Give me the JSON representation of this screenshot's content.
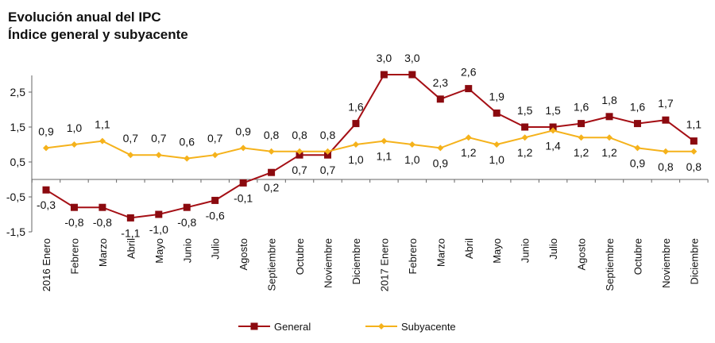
{
  "chart_data": {
    "type": "line",
    "title": "Evolución anual del IPC",
    "subtitle": "Índice general y subyacente",
    "categories": [
      "2016 Enero",
      "Febrero",
      "Marzo",
      "Abril",
      "Mayo",
      "Junio",
      "Julio",
      "Agosto",
      "Septiembre",
      "Octubre",
      "Noviembre",
      "Diciembre",
      "2017 Enero",
      "Febrero",
      "Marzo",
      "Abril",
      "Mayo",
      "Junio",
      "Julio",
      "Agosto",
      "Septiembre",
      "Octubre",
      "Noviembre",
      "Diciembre"
    ],
    "y_ticks": [
      "2,5",
      "1,5",
      "0,5",
      "-0,5",
      "-1,5"
    ],
    "y_tick_values": [
      2.5,
      1.5,
      0.5,
      -0.5,
      -1.5
    ],
    "ylim": [
      -1.5,
      2.9
    ],
    "grid": false,
    "legend_position": "bottom",
    "series": [
      {
        "name": "General",
        "color": "#A50F15",
        "marker": "square",
        "values": [
          -0.3,
          -0.8,
          -0.8,
          -1.1,
          -1.0,
          -0.8,
          -0.6,
          -0.1,
          0.2,
          0.7,
          0.7,
          1.6,
          3.0,
          3.0,
          2.3,
          2.6,
          1.9,
          1.5,
          1.5,
          1.6,
          1.8,
          1.6,
          1.7,
          1.1
        ]
      },
      {
        "name": "Subyacente",
        "color": "#F5B21B",
        "marker": "diamond",
        "values": [
          0.9,
          1.0,
          1.1,
          0.7,
          0.7,
          0.6,
          0.7,
          0.9,
          0.8,
          0.8,
          0.8,
          1.0,
          1.1,
          1.0,
          0.9,
          1.2,
          1.0,
          1.2,
          1.4,
          1.2,
          1.2,
          0.9,
          0.8,
          0.8
        ]
      }
    ]
  }
}
